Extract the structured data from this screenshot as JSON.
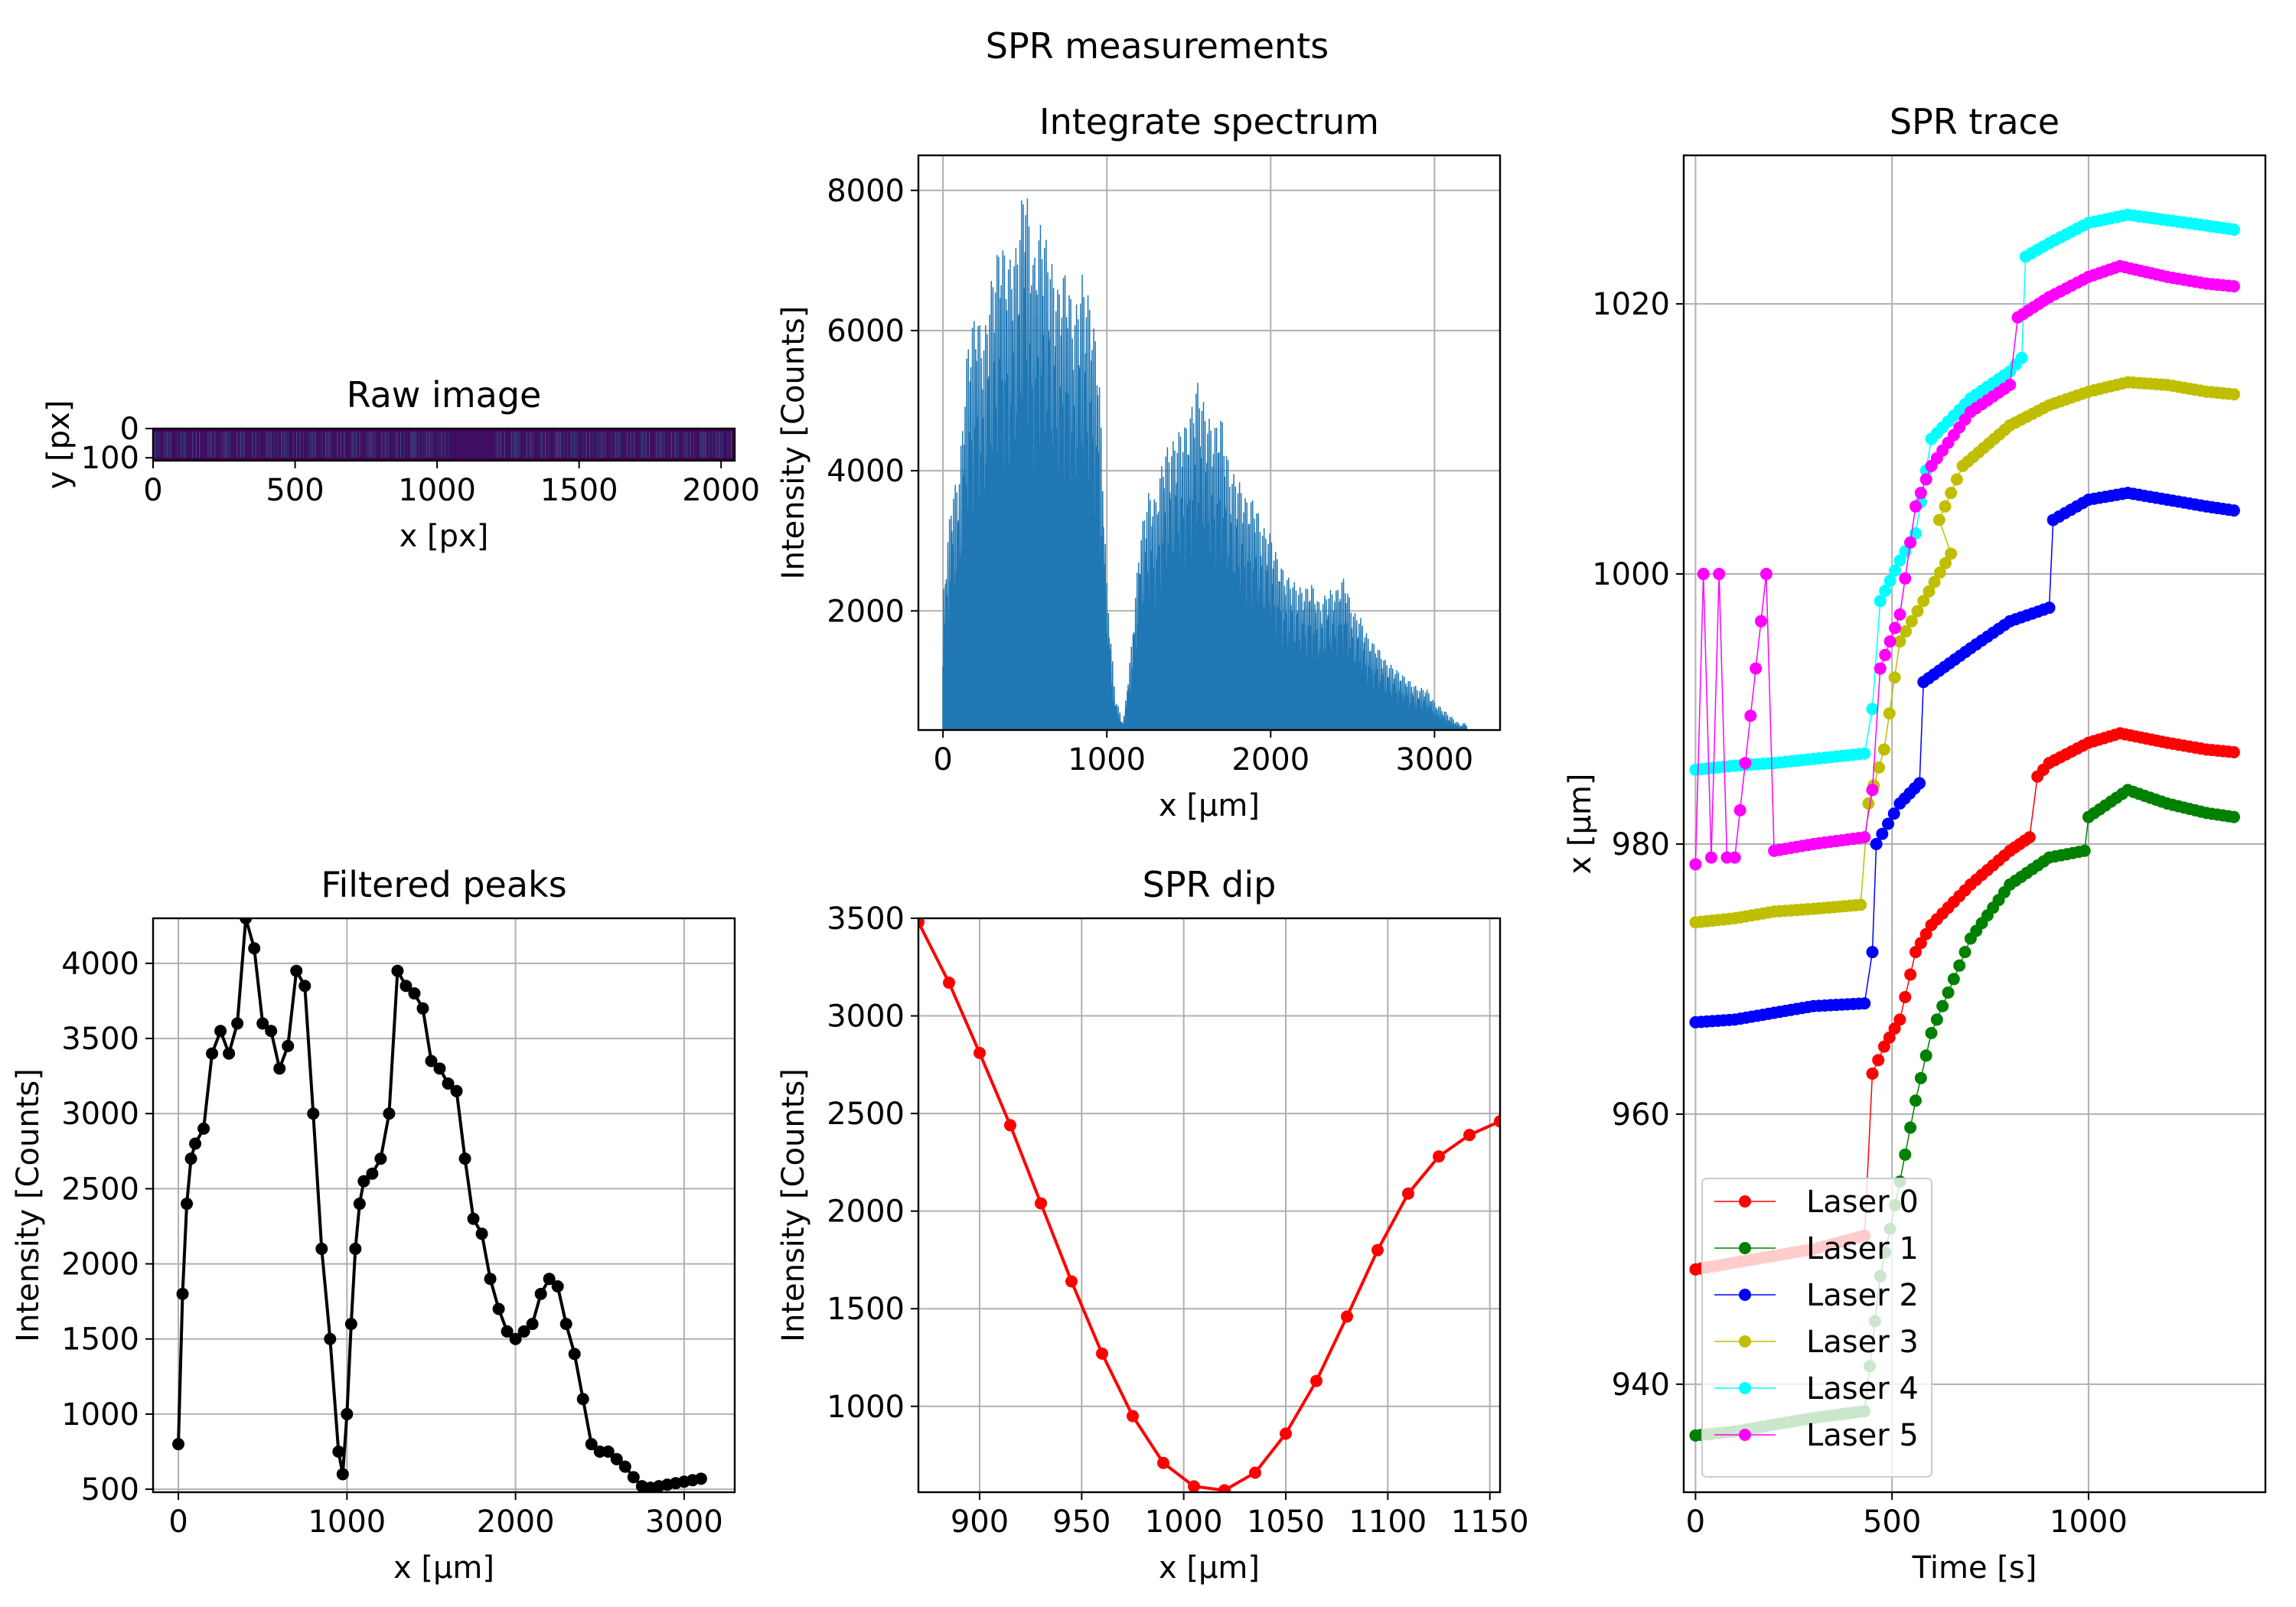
{
  "figure": {
    "suptitle": "SPR measurements"
  },
  "chart_data": [
    {
      "id": "raw",
      "type": "heatmap",
      "title": "Raw image",
      "xlabel": "x [px]",
      "ylabel": "y [px]",
      "xlim": [
        0,
        2048
      ],
      "ylim": [
        110,
        0
      ],
      "xticks": [
        0,
        500,
        1000,
        1500,
        2000
      ],
      "yticks": [
        0,
        100
      ],
      "colormap": "viridis"
    },
    {
      "id": "spectrum",
      "type": "line",
      "title": "Integrate spectrum",
      "xlabel": "x [μm]",
      "ylabel": "Intensity [Counts]",
      "xlim": [
        -150,
        3400
      ],
      "ylim": [
        300,
        8500
      ],
      "xticks": [
        0,
        1000,
        2000,
        3000
      ],
      "yticks": [
        2000,
        4000,
        6000,
        8000
      ],
      "color": "#1f77b4",
      "envelope": [
        [
          0,
          2200
        ],
        [
          50,
          3600
        ],
        [
          100,
          4000
        ],
        [
          150,
          5800
        ],
        [
          200,
          6300
        ],
        [
          250,
          5900
        ],
        [
          300,
          6800
        ],
        [
          350,
          7300
        ],
        [
          400,
          7000
        ],
        [
          450,
          7200
        ],
        [
          500,
          8300
        ],
        [
          550,
          7000
        ],
        [
          600,
          7600
        ],
        [
          650,
          7100
        ],
        [
          700,
          6600
        ],
        [
          750,
          6900
        ],
        [
          800,
          6200
        ],
        [
          850,
          6800
        ],
        [
          900,
          6400
        ],
        [
          950,
          5600
        ],
        [
          1000,
          2400
        ],
        [
          1050,
          800
        ],
        [
          1100,
          400
        ],
        [
          1150,
          1500
        ],
        [
          1200,
          3000
        ],
        [
          1250,
          3700
        ],
        [
          1300,
          3600
        ],
        [
          1350,
          4300
        ],
        [
          1400,
          4400
        ],
        [
          1450,
          4600
        ],
        [
          1500,
          4700
        ],
        [
          1550,
          5300
        ],
        [
          1600,
          4900
        ],
        [
          1650,
          4600
        ],
        [
          1700,
          4800
        ],
        [
          1750,
          4000
        ],
        [
          1800,
          3900
        ],
        [
          1850,
          3600
        ],
        [
          1900,
          3600
        ],
        [
          1950,
          3200
        ],
        [
          2000,
          3100
        ],
        [
          2050,
          2700
        ],
        [
          2100,
          2500
        ],
        [
          2150,
          2400
        ],
        [
          2200,
          2300
        ],
        [
          2250,
          2400
        ],
        [
          2300,
          2100
        ],
        [
          2350,
          2300
        ],
        [
          2400,
          2300
        ],
        [
          2450,
          2500
        ],
        [
          2500,
          2000
        ],
        [
          2550,
          1900
        ],
        [
          2600,
          1600
        ],
        [
          2650,
          1500
        ],
        [
          2700,
          1300
        ],
        [
          2750,
          1200
        ],
        [
          2800,
          1100
        ],
        [
          2850,
          1000
        ],
        [
          2900,
          900
        ],
        [
          2950,
          900
        ],
        [
          3000,
          700
        ],
        [
          3050,
          600
        ],
        [
          3100,
          500
        ],
        [
          3150,
          400
        ],
        [
          3200,
          400
        ]
      ]
    },
    {
      "id": "peaks",
      "type": "line",
      "title": "Filtered peaks",
      "xlabel": "x [μm]",
      "ylabel": "Intensity [Counts]",
      "xlim": [
        -150,
        3300
      ],
      "ylim": [
        480,
        4300
      ],
      "xticks": [
        0,
        1000,
        2000,
        3000
      ],
      "yticks": [
        500,
        1000,
        1500,
        2000,
        2500,
        3000,
        3500,
        4000
      ],
      "color": "#000000",
      "x": [
        0,
        25,
        50,
        75,
        100,
        150,
        200,
        250,
        300,
        350,
        400,
        450,
        500,
        550,
        600,
        650,
        700,
        750,
        800,
        850,
        900,
        950,
        975,
        1000,
        1025,
        1050,
        1075,
        1100,
        1150,
        1200,
        1250,
        1300,
        1350,
        1400,
        1450,
        1500,
        1550,
        1600,
        1650,
        1700,
        1750,
        1800,
        1850,
        1900,
        1950,
        2000,
        2050,
        2100,
        2150,
        2200,
        2250,
        2300,
        2350,
        2400,
        2450,
        2500,
        2550,
        2600,
        2650,
        2700,
        2750,
        2800,
        2850,
        2900,
        2950,
        3000,
        3050,
        3100
      ],
      "y": [
        800,
        1800,
        2400,
        2700,
        2800,
        2900,
        3400,
        3550,
        3400,
        3600,
        4300,
        4100,
        3600,
        3550,
        3300,
        3450,
        3950,
        3850,
        3000,
        2100,
        1500,
        750,
        600,
        1000,
        1600,
        2100,
        2400,
        2550,
        2600,
        2700,
        3000,
        3950,
        3850,
        3800,
        3700,
        3350,
        3300,
        3200,
        3150,
        2700,
        2300,
        2200,
        1900,
        1700,
        1550,
        1500,
        1550,
        1600,
        1800,
        1900,
        1850,
        1600,
        1400,
        1100,
        800,
        750,
        750,
        700,
        650,
        580,
        520,
        510,
        520,
        530,
        540,
        550,
        560,
        570
      ]
    },
    {
      "id": "dip",
      "type": "line",
      "title": "SPR dip",
      "xlabel": "x [μm]",
      "ylabel": "Intensity [Counts]",
      "xlim": [
        870,
        1155
      ],
      "ylim": [
        560,
        3500
      ],
      "xticks": [
        900,
        950,
        1000,
        1050,
        1100,
        1150
      ],
      "yticks": [
        1000,
        1500,
        2000,
        2500,
        3000,
        3500
      ],
      "color": "#ff0000",
      "x": [
        870,
        885,
        900,
        915,
        930,
        945,
        960,
        975,
        990,
        1005,
        1020,
        1035,
        1050,
        1065,
        1080,
        1095,
        1110,
        1125,
        1140,
        1155
      ],
      "y": [
        3480,
        3170,
        2810,
        2440,
        2040,
        1640,
        1270,
        950,
        710,
        590,
        570,
        660,
        860,
        1130,
        1460,
        1800,
        2090,
        2280,
        2390,
        2460
      ]
    },
    {
      "id": "trace",
      "type": "scatter",
      "title": "SPR trace",
      "xlabel": "Time [s]",
      "ylabel": "x [μm]",
      "xlim": [
        -30,
        1450
      ],
      "ylim": [
        932,
        1031
      ],
      "xticks": [
        0,
        500,
        1000
      ],
      "yticks": [
        940,
        960,
        980,
        1000,
        1020
      ],
      "legend": "lower-left",
      "series": [
        {
          "name": "Laser 0",
          "color": "#ff0000",
          "points": [
            [
              0,
              948.5
            ],
            [
              100,
              949
            ],
            [
              200,
              949.5
            ],
            [
              300,
              950
            ],
            [
              430,
              951
            ],
            [
              450,
              963
            ],
            [
              480,
              965
            ],
            [
              520,
              967
            ],
            [
              560,
              972
            ],
            [
              600,
              974
            ],
            [
              700,
              977
            ],
            [
              800,
              979.5
            ],
            [
              850,
              980.5
            ],
            [
              870,
              985
            ],
            [
              900,
              986
            ],
            [
              1000,
              987.5
            ],
            [
              1080,
              988.2
            ],
            [
              1200,
              987.5
            ],
            [
              1300,
              987
            ],
            [
              1370,
              986.8
            ]
          ]
        },
        {
          "name": "Laser 1",
          "color": "#008000",
          "points": [
            [
              0,
              936.2
            ],
            [
              100,
              936.5
            ],
            [
              200,
              937
            ],
            [
              300,
              937.5
            ],
            [
              430,
              938
            ],
            [
              470,
              948
            ],
            [
              520,
              955
            ],
            [
              560,
              961
            ],
            [
              600,
              966
            ],
            [
              700,
              973
            ],
            [
              800,
              977
            ],
            [
              900,
              979
            ],
            [
              990,
              979.5
            ],
            [
              1000,
              982
            ],
            [
              1100,
              984
            ],
            [
              1200,
              983
            ],
            [
              1300,
              982.3
            ],
            [
              1370,
              982
            ]
          ]
        },
        {
          "name": "Laser 2",
          "color": "#0000ff",
          "points": [
            [
              0,
              966.8
            ],
            [
              100,
              967
            ],
            [
              200,
              967.5
            ],
            [
              300,
              968
            ],
            [
              430,
              968.2
            ],
            [
              450,
              972
            ],
            [
              460,
              980
            ],
            [
              520,
              983
            ],
            [
              570,
              984.5
            ],
            [
              580,
              992
            ],
            [
              700,
              994.5
            ],
            [
              800,
              996.5
            ],
            [
              900,
              997.5
            ],
            [
              910,
              1004
            ],
            [
              1000,
              1005.5
            ],
            [
              1100,
              1006
            ],
            [
              1200,
              1005.5
            ],
            [
              1300,
              1005
            ],
            [
              1370,
              1004.7
            ]
          ]
        },
        {
          "name": "Laser 3",
          "color": "#bfbf00",
          "points": [
            [
              0,
              974.2
            ],
            [
              100,
              974.5
            ],
            [
              200,
              975
            ],
            [
              300,
              975.2
            ],
            [
              420,
              975.5
            ],
            [
              440,
              983
            ],
            [
              480,
              987
            ],
            [
              520,
              995
            ],
            [
              580,
              998
            ],
            [
              650,
              1001.5
            ],
            [
              620,
              1004
            ],
            [
              680,
              1008
            ],
            [
              800,
              1011
            ],
            [
              900,
              1012.5
            ],
            [
              1000,
              1013.5
            ],
            [
              1100,
              1014.2
            ],
            [
              1200,
              1014
            ],
            [
              1300,
              1013.5
            ],
            [
              1370,
              1013.3
            ]
          ]
        },
        {
          "name": "Laser 4",
          "color": "#00ffff",
          "points": [
            [
              0,
              985.5
            ],
            [
              100,
              985.8
            ],
            [
              200,
              986
            ],
            [
              300,
              986.3
            ],
            [
              430,
              986.7
            ],
            [
              450,
              990
            ],
            [
              470,
              998
            ],
            [
              520,
              1001
            ],
            [
              560,
              1003
            ],
            [
              600,
              1010
            ],
            [
              700,
              1013
            ],
            [
              800,
              1015
            ],
            [
              830,
              1016
            ],
            [
              840,
              1023.5
            ],
            [
              900,
              1024.5
            ],
            [
              1000,
              1026
            ],
            [
              1100,
              1026.6
            ],
            [
              1200,
              1026.2
            ],
            [
              1300,
              1025.8
            ],
            [
              1370,
              1025.5
            ]
          ]
        },
        {
          "name": "Laser 5",
          "color": "#ff00ff",
          "points": [
            [
              0,
              978.5
            ],
            [
              20,
              1000
            ],
            [
              40,
              979
            ],
            [
              60,
              1000
            ],
            [
              80,
              979
            ],
            [
              100,
              979
            ],
            [
              180,
              1000
            ],
            [
              200,
              979.5
            ],
            [
              300,
              980
            ],
            [
              430,
              980.5
            ],
            [
              450,
              984
            ],
            [
              470,
              993
            ],
            [
              520,
              997
            ],
            [
              560,
              1005
            ],
            [
              600,
              1008
            ],
            [
              700,
              1012
            ],
            [
              800,
              1014
            ],
            [
              820,
              1019
            ],
            [
              900,
              1020.5
            ],
            [
              1000,
              1022
            ],
            [
              1080,
              1022.8
            ],
            [
              1200,
              1022
            ],
            [
              1300,
              1021.5
            ],
            [
              1370,
              1021.3
            ]
          ]
        }
      ]
    }
  ]
}
